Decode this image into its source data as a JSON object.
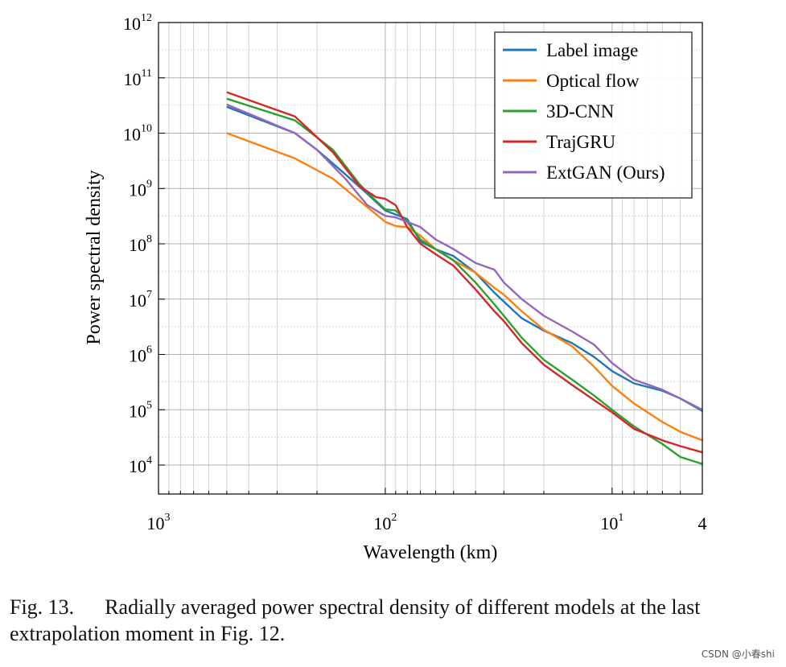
{
  "chart_data": {
    "type": "line",
    "xlabel": "Wavelength (km)",
    "ylabel": "Power spectral density",
    "x_scale": "log",
    "x_reversed": true,
    "y_scale": "log",
    "xlim": [
      1000,
      4
    ],
    "ylim": [
      3000,
      1000000000000
    ],
    "x_ticks": [
      {
        "value": 1000,
        "base": "10",
        "exp": "3"
      },
      {
        "value": 100,
        "base": "10",
        "exp": "2"
      },
      {
        "value": 10,
        "base": "10",
        "exp": "1"
      },
      {
        "value": 4,
        "base": "4",
        "exp": ""
      }
    ],
    "y_ticks": [
      {
        "value": 10000,
        "base": "10",
        "exp": "4"
      },
      {
        "value": 100000,
        "base": "10",
        "exp": "5"
      },
      {
        "value": 1000000,
        "base": "10",
        "exp": "6"
      },
      {
        "value": 10000000,
        "base": "10",
        "exp": "7"
      },
      {
        "value": 100000000,
        "base": "10",
        "exp": "8"
      },
      {
        "value": 1000000000,
        "base": "10",
        "exp": "9"
      },
      {
        "value": 10000000000,
        "base": "10",
        "exp": "10"
      },
      {
        "value": 100000000000,
        "base": "10",
        "exp": "11"
      },
      {
        "value": 1000000000000,
        "base": "10",
        "exp": "12"
      }
    ],
    "grid": true,
    "legend_position": "top-right",
    "series": [
      {
        "name": "Label image",
        "color": "#1f77b4",
        "x": [
          500,
          250,
          200,
          150,
          120,
          100,
          80,
          70,
          60,
          50,
          40,
          33,
          30,
          25,
          20,
          15,
          12,
          10,
          8,
          6,
          5,
          4
        ],
        "y": [
          30000000000.0,
          10000000000.0,
          5000000000.0,
          1800000000.0,
          800000000.0,
          400000000.0,
          280000000.0,
          110000000.0,
          80000000.0,
          60000000.0,
          30000000.0,
          13000000.0,
          9000000.0,
          4500000.0,
          2700000.0,
          1600000.0,
          900000.0,
          500000.0,
          300000.0,
          220000.0,
          160000.0,
          95000.0
        ]
      },
      {
        "name": "Optical flow",
        "color": "#ff7f0e",
        "x": [
          500,
          250,
          170,
          130,
          100,
          90,
          80,
          70,
          60,
          50,
          40,
          33,
          30,
          25,
          20,
          15,
          12,
          10,
          8,
          6,
          5,
          4
        ],
        "y": [
          10000000000.0,
          3500000000.0,
          1500000000.0,
          600000000.0,
          250000000.0,
          210000000.0,
          200000000.0,
          140000000.0,
          80000000.0,
          50000000.0,
          30000000.0,
          16000000.0,
          12000000.0,
          6000000.0,
          2800000.0,
          1400000.0,
          600000.0,
          270000.0,
          130000.0,
          60000.0,
          40000.0,
          28000.0
        ]
      },
      {
        "name": "3D-CNN",
        "color": "#2ca02c",
        "x": [
          500,
          250,
          170,
          130,
          110,
          100,
          90,
          80,
          70,
          60,
          50,
          40,
          33,
          30,
          25,
          20,
          15,
          12,
          10,
          8,
          6,
          5,
          4
        ],
        "y": [
          42000000000.0,
          17000000000.0,
          5000000000.0,
          1200000000.0,
          600000000.0,
          420000000.0,
          400000000.0,
          250000000.0,
          120000000.0,
          80000000.0,
          50000000.0,
          20000000.0,
          8000000.0,
          5000000.0,
          2000000.0,
          800000.0,
          350000.0,
          180000.0,
          100000.0,
          50000.0,
          24000.0,
          14000.0,
          10500.0
        ]
      },
      {
        "name": "TrajGRU",
        "color": "#d62728",
        "x": [
          500,
          250,
          170,
          130,
          110,
          100,
          90,
          80,
          70,
          60,
          50,
          40,
          33,
          30,
          25,
          20,
          15,
          12,
          10,
          8,
          6,
          5,
          4
        ],
        "y": [
          55000000000.0,
          20000000000.0,
          4500000000.0,
          1100000000.0,
          700000000.0,
          650000000.0,
          500000000.0,
          200000000.0,
          100000000.0,
          65000000.0,
          40000000.0,
          15000000.0,
          6000000.0,
          4000000.0,
          1600000.0,
          650000.0,
          280000.0,
          150000.0,
          90000.0,
          45000.0,
          28000.0,
          22000.0,
          17000.0
        ]
      },
      {
        "name": "ExtGAN (Ours)",
        "color": "#9467bd",
        "x": [
          500,
          250,
          200,
          150,
          120,
          100,
          90,
          80,
          70,
          60,
          50,
          40,
          33,
          30,
          25,
          20,
          15,
          12,
          10,
          8,
          6,
          5,
          4
        ],
        "y": [
          33000000000.0,
          10000000000.0,
          5000000000.0,
          1500000000.0,
          500000000.0,
          320000000.0,
          300000000.0,
          250000000.0,
          200000000.0,
          120000000.0,
          80000000.0,
          45000000.0,
          34000000.0,
          20000000.0,
          10000000.0,
          5000000.0,
          2600000.0,
          1500000.0,
          700000.0,
          350000.0,
          230000.0,
          160000.0,
          100000.0
        ]
      }
    ]
  },
  "caption": {
    "label": "Fig. 13.",
    "text": "Radially averaged power spectral density of different models at the last extrapolation moment in Fig. 12."
  },
  "watermark": "CSDN @小春shi"
}
